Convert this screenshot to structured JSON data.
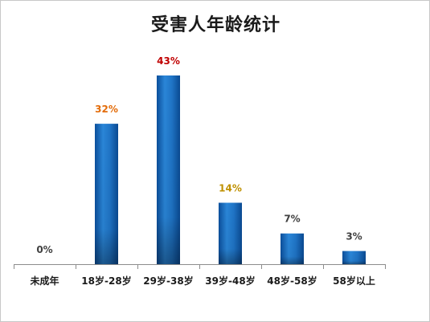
{
  "chart_data": {
    "type": "bar",
    "title": "受害人年龄统计",
    "categories": [
      "未成年",
      "18岁-28岁",
      "29岁-38岁",
      "39岁-48岁",
      "48岁-58岁",
      "58岁以上"
    ],
    "values": [
      0,
      32,
      43,
      14,
      7,
      3
    ],
    "data_labels": [
      "0%",
      "32%",
      "43%",
      "14%",
      "7%",
      "3%"
    ],
    "unit": "%",
    "label_colors": [
      "#404040",
      "#e36c09",
      "#c00000",
      "#bf9000",
      "#404040",
      "#404040"
    ],
    "bar_color": "#1f6fbf",
    "ylim": [
      0,
      43
    ],
    "grid": false,
    "legend": "none",
    "xlabel": "",
    "ylabel": ""
  }
}
